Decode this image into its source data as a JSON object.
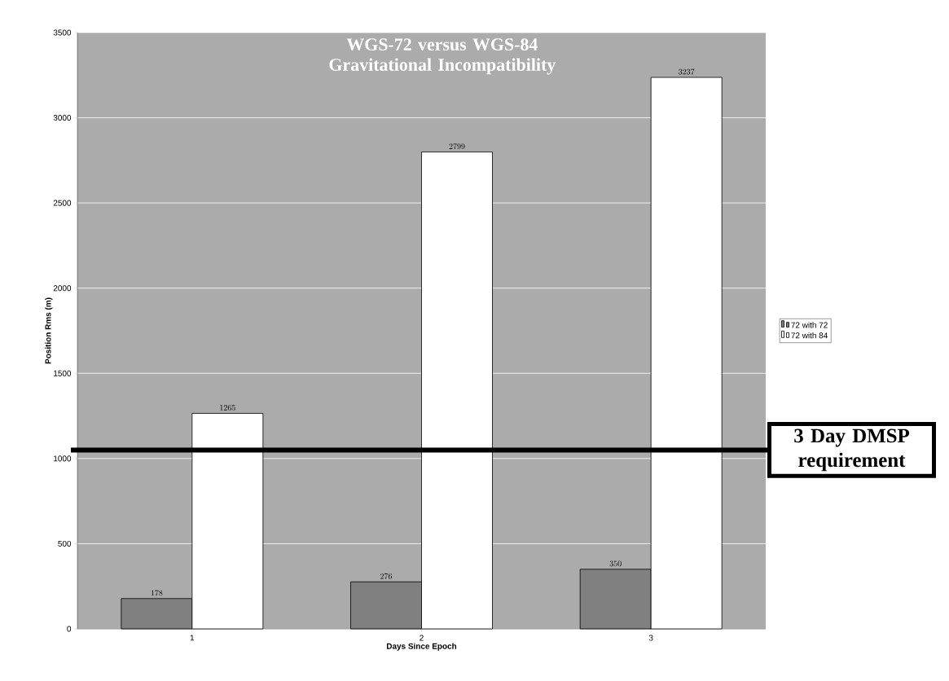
{
  "chart_data": {
    "type": "bar",
    "title": "WGS-72 versus WGS-84 Gravitational Incompatibility",
    "xlabel": "Days Since Epoch",
    "ylabel": "Position Rms (m)",
    "categories": [
      "1",
      "2",
      "3"
    ],
    "series": [
      {
        "name": "72 with 72",
        "color": "#808080",
        "values": [
          178,
          276,
          350
        ]
      },
      {
        "name": "72 with 84",
        "color": "#ffffff",
        "values": [
          1265,
          2799,
          3237
        ]
      }
    ],
    "ylim": [
      0,
      3500
    ],
    "yticks": [
      0,
      500,
      1000,
      1500,
      2000,
      2500,
      3000,
      3500
    ],
    "grid": "y",
    "legend": "right",
    "data_labels": true,
    "ref_lines": [
      {
        "axis": "y",
        "value": 1050,
        "label": "3 Day DMSP requirement",
        "color": "#000000"
      }
    ]
  }
}
